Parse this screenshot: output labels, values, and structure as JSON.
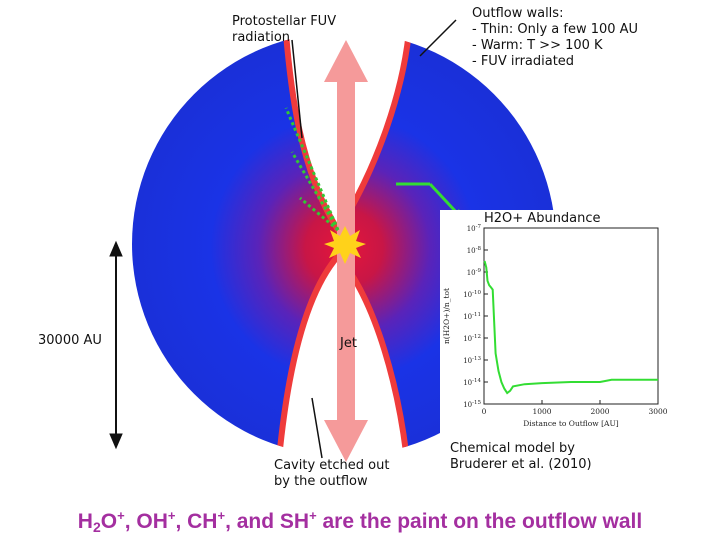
{
  "labels": {
    "fuv": "Protostellar FUV\nradiation",
    "outflow_walls": "Outflow walls:\n- Thin: Only a few 100 AU\n- Warm: T >> 100 K\n- FUV irradiated",
    "scale": "30000 AU",
    "jet": "Jet",
    "cavity": "Cavity etched out\nby the outflow",
    "model_credit": "Chemical model by\nBruderer et al. (2010)"
  },
  "caption": {
    "parts": [
      {
        "text": "H"
      },
      {
        "sub": "2"
      },
      {
        "text": "O"
      },
      {
        "sup": "+"
      },
      {
        "text": ", OH"
      },
      {
        "sup": "+"
      },
      {
        "text": ", CH"
      },
      {
        "sup": "+"
      },
      {
        "text": ", and SH"
      },
      {
        "sup": "+"
      },
      {
        "text": " are the paint on the outflow wall"
      }
    ]
  },
  "colors": {
    "envelope_outer": "#1a33e6",
    "envelope_inner": "#e6163a",
    "wall": "#ef3b3b",
    "jet": "#f59a9a",
    "star": "#ffd21a",
    "fuv_rays": "#33c833",
    "inset_line": "#33dd33",
    "caption": "#a42fa0"
  },
  "chart_data": {
    "type": "line",
    "title": "H2O+ Abundance",
    "xlabel": "Distance to Outflow [AU]",
    "ylabel": "n(H2O+)/n_tot",
    "y_scale": "log",
    "xlim": [
      0,
      3000
    ],
    "ylim_exp": [
      -15,
      -7
    ],
    "x_ticks": [
      "0",
      "1000",
      "2000",
      "3000"
    ],
    "y_tick_exponents": [
      -7,
      -8,
      -9,
      -10,
      -11,
      -12,
      -13,
      -14,
      -15
    ],
    "series": [
      {
        "x": [
          10,
          40,
          60,
          90,
          120,
          150,
          180,
          200,
          250,
          300,
          350,
          400,
          450,
          500,
          700,
          1000,
          1500,
          2000,
          2200,
          3000
        ],
        "y_exp": [
          -8.5,
          -8.8,
          -9.4,
          -9.6,
          -9.7,
          -9.8,
          -11.5,
          -12.7,
          -13.5,
          -14.0,
          -14.3,
          -14.5,
          -14.4,
          -14.2,
          -14.1,
          -14.05,
          -14.0,
          -14.0,
          -13.9,
          -13.9
        ]
      }
    ]
  }
}
